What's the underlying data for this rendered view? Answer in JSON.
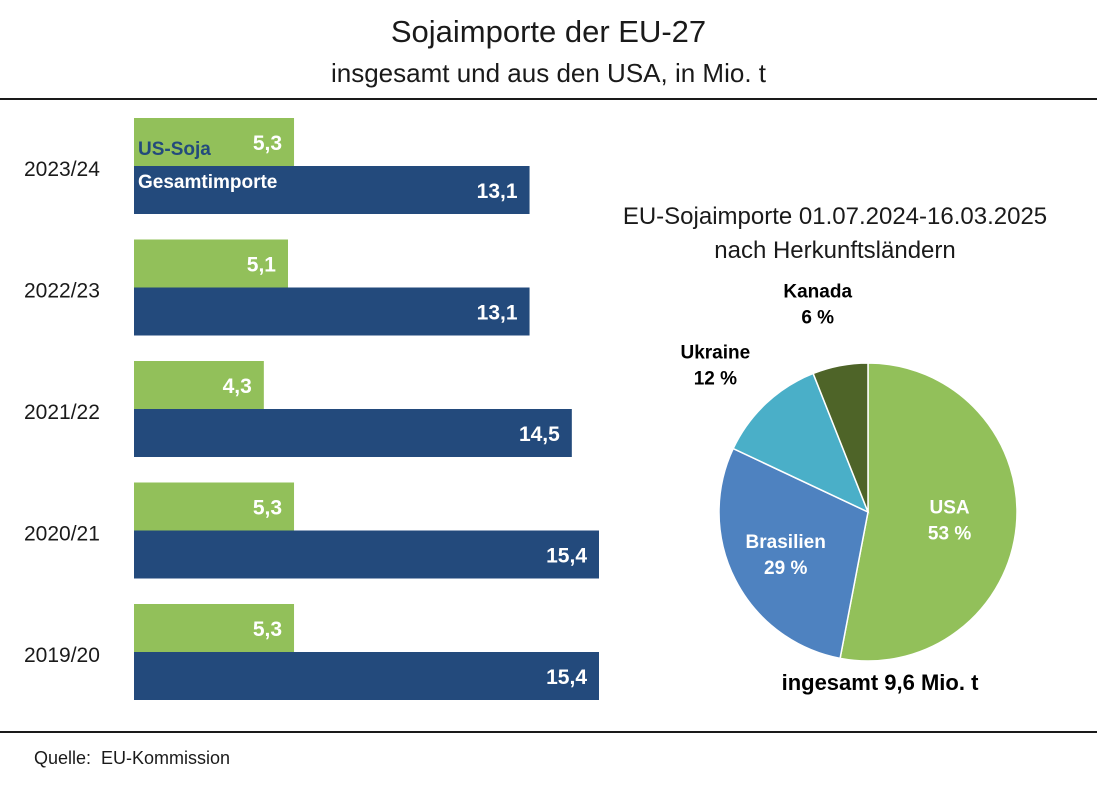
{
  "title": "Sojaimporte der EU-27",
  "subtitle": "insgesamt und aus den USA, in Mio. t",
  "source": "Quelle:  EU-Kommission",
  "colors": {
    "green": "#92c05a",
    "navy": "#234a7c",
    "pie_usa": "#92c05a",
    "pie_brasilien": "#4e82c0",
    "pie_ukraine": "#4aafc8",
    "pie_kanada": "#4e6428"
  },
  "chart_data": [
    {
      "type": "bar",
      "orientation": "horizontal",
      "categories": [
        "2023/24",
        "2022/23",
        "2021/22",
        "2020/21",
        "2019/20"
      ],
      "series": [
        {
          "name": "US-Soja",
          "values": [
            5.3,
            5.1,
            4.3,
            5.3,
            5.3
          ],
          "labels": [
            "5,3",
            "5,1",
            "4,3",
            "5,3",
            "5,3"
          ],
          "color": "#92c05a"
        },
        {
          "name": "Gesamtimporte",
          "values": [
            13.1,
            13.1,
            14.5,
            15.4,
            15.4
          ],
          "labels": [
            "13,1",
            "13,1",
            "14,5",
            "15,4",
            "15,4"
          ],
          "color": "#234a7c"
        }
      ],
      "xlim": [
        0,
        15.4
      ],
      "grid": false,
      "legend": "inside-first-bars"
    },
    {
      "type": "pie",
      "title": "EU-Sojaimporte 01.07.2024-16.03.2025",
      "subtitle": "nach Herkunftsländern",
      "slices": [
        {
          "name": "USA",
          "value": 53,
          "label": "53 %",
          "color": "#92c05a"
        },
        {
          "name": "Brasilien",
          "value": 29,
          "label": "29 %",
          "color": "#4e82c0"
        },
        {
          "name": "Ukraine",
          "value": 12,
          "label": "12 %",
          "color": "#4aafc8"
        },
        {
          "name": "Kanada",
          "value": 6,
          "label": "6 %",
          "color": "#4e6428"
        }
      ],
      "annotation": "ingesamt 9,6 Mio. t"
    }
  ]
}
